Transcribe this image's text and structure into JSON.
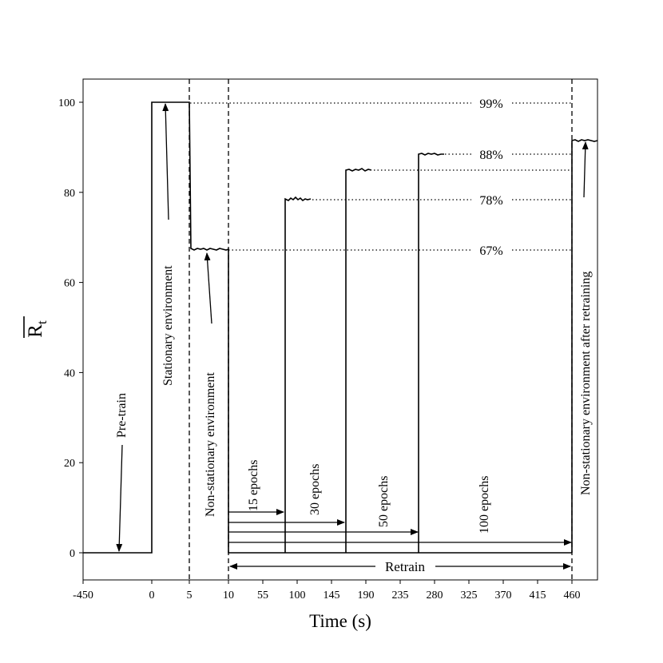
{
  "chart_data": {
    "type": "line",
    "xlabel": "Time (s)",
    "ylabel": "R",
    "ylabel_subscript": "t",
    "ylim": [
      -6,
      105
    ],
    "x_ticks": [
      "-450",
      "0",
      "5",
      "10",
      "55",
      "100",
      "145",
      "190",
      "235",
      "280",
      "325",
      "370",
      "415",
      "460"
    ],
    "y_ticks": [
      "0",
      "20",
      "40",
      "60",
      "80",
      "100"
    ],
    "grid": false,
    "phases": [
      {
        "label": "Pre-train",
        "x_start": "-450",
        "x_end": "0",
        "value": 0
      },
      {
        "label": "Stationary environment",
        "x_start": "0",
        "x_end": "5",
        "value": 100
      },
      {
        "label": "Non-stationary environment",
        "x_start": "5",
        "x_end": "10",
        "value": 67
      },
      {
        "label": "Non-stationary environment after retraining",
        "x_start": "460",
        "x_end": "480",
        "value": 91.3
      }
    ],
    "retrain_runs": [
      {
        "epochs_label": "15 epochs",
        "end_x": "~82",
        "value": 78.2
      },
      {
        "epochs_label": "30 epochs",
        "end_x": "~162",
        "value": 84.7
      },
      {
        "epochs_label": "50 epochs",
        "end_x": "~260",
        "value": 88.2
      },
      {
        "epochs_label": "100 epochs",
        "end_x": "460",
        "value": 91.3
      }
    ],
    "percent_labels": [
      "99%",
      "88%",
      "78%",
      "67%"
    ],
    "retrain_label": "Retrain"
  }
}
